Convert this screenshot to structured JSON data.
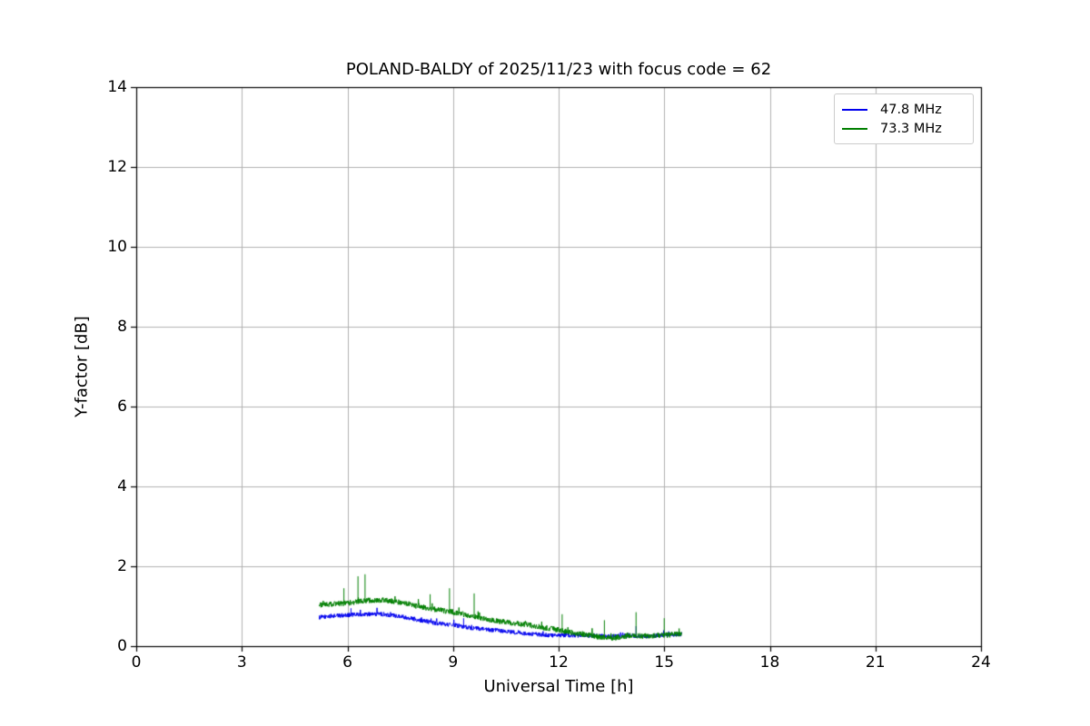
{
  "chart_data": {
    "type": "line",
    "title": "POLAND-BALDY of 2025/11/23 with focus code = 62",
    "xlabel": "Universal Time [h]",
    "ylabel": "Y-factor [dB]",
    "xlim": [
      0,
      24
    ],
    "ylim": [
      0,
      14
    ],
    "xticks": [
      0,
      3,
      6,
      9,
      12,
      15,
      18,
      21,
      24
    ],
    "yticks": [
      0,
      2,
      4,
      6,
      8,
      10,
      12,
      14
    ],
    "grid": true,
    "grid_color": "#b0b0b0",
    "legend_position": "upper right",
    "series": [
      {
        "name": "47.8 MHz",
        "color": "#0000ee",
        "noise": 0.055,
        "x_range": [
          5.2,
          15.5
        ],
        "base": [
          [
            5.2,
            0.72
          ],
          [
            5.5,
            0.75
          ],
          [
            6.0,
            0.78
          ],
          [
            6.5,
            0.8
          ],
          [
            7.0,
            0.8
          ],
          [
            7.5,
            0.75
          ],
          [
            8.0,
            0.66
          ],
          [
            8.5,
            0.58
          ],
          [
            9.0,
            0.53
          ],
          [
            9.5,
            0.46
          ],
          [
            10.0,
            0.41
          ],
          [
            10.5,
            0.37
          ],
          [
            11.0,
            0.32
          ],
          [
            11.5,
            0.28
          ],
          [
            12.0,
            0.27
          ],
          [
            12.5,
            0.27
          ],
          [
            13.0,
            0.26
          ],
          [
            13.5,
            0.24
          ],
          [
            14.0,
            0.27
          ],
          [
            14.5,
            0.24
          ],
          [
            15.0,
            0.28
          ],
          [
            15.5,
            0.3
          ]
        ],
        "spikes": [
          [
            6.1,
            0.95
          ],
          [
            9.3,
            0.7
          ],
          [
            14.2,
            0.5
          ]
        ]
      },
      {
        "name": "73.3 MHz",
        "color": "#007f00",
        "noise": 0.07,
        "x_range": [
          5.2,
          15.5
        ],
        "base": [
          [
            5.2,
            1.02
          ],
          [
            5.5,
            1.05
          ],
          [
            6.0,
            1.08
          ],
          [
            6.5,
            1.14
          ],
          [
            7.0,
            1.15
          ],
          [
            7.5,
            1.1
          ],
          [
            8.0,
            1.0
          ],
          [
            8.5,
            0.92
          ],
          [
            9.0,
            0.85
          ],
          [
            9.5,
            0.76
          ],
          [
            10.0,
            0.66
          ],
          [
            10.5,
            0.6
          ],
          [
            11.0,
            0.55
          ],
          [
            11.5,
            0.48
          ],
          [
            12.0,
            0.4
          ],
          [
            12.5,
            0.32
          ],
          [
            13.0,
            0.25
          ],
          [
            13.5,
            0.2
          ],
          [
            14.0,
            0.26
          ],
          [
            14.5,
            0.25
          ],
          [
            15.0,
            0.27
          ],
          [
            15.5,
            0.32
          ]
        ],
        "spikes": [
          [
            5.9,
            1.45
          ],
          [
            6.3,
            1.75
          ],
          [
            6.5,
            1.8
          ],
          [
            8.35,
            1.3
          ],
          [
            8.9,
            1.45
          ],
          [
            9.6,
            1.32
          ],
          [
            12.1,
            0.8
          ],
          [
            13.3,
            0.65
          ],
          [
            14.2,
            0.85
          ],
          [
            15.0,
            0.7
          ]
        ]
      }
    ]
  }
}
